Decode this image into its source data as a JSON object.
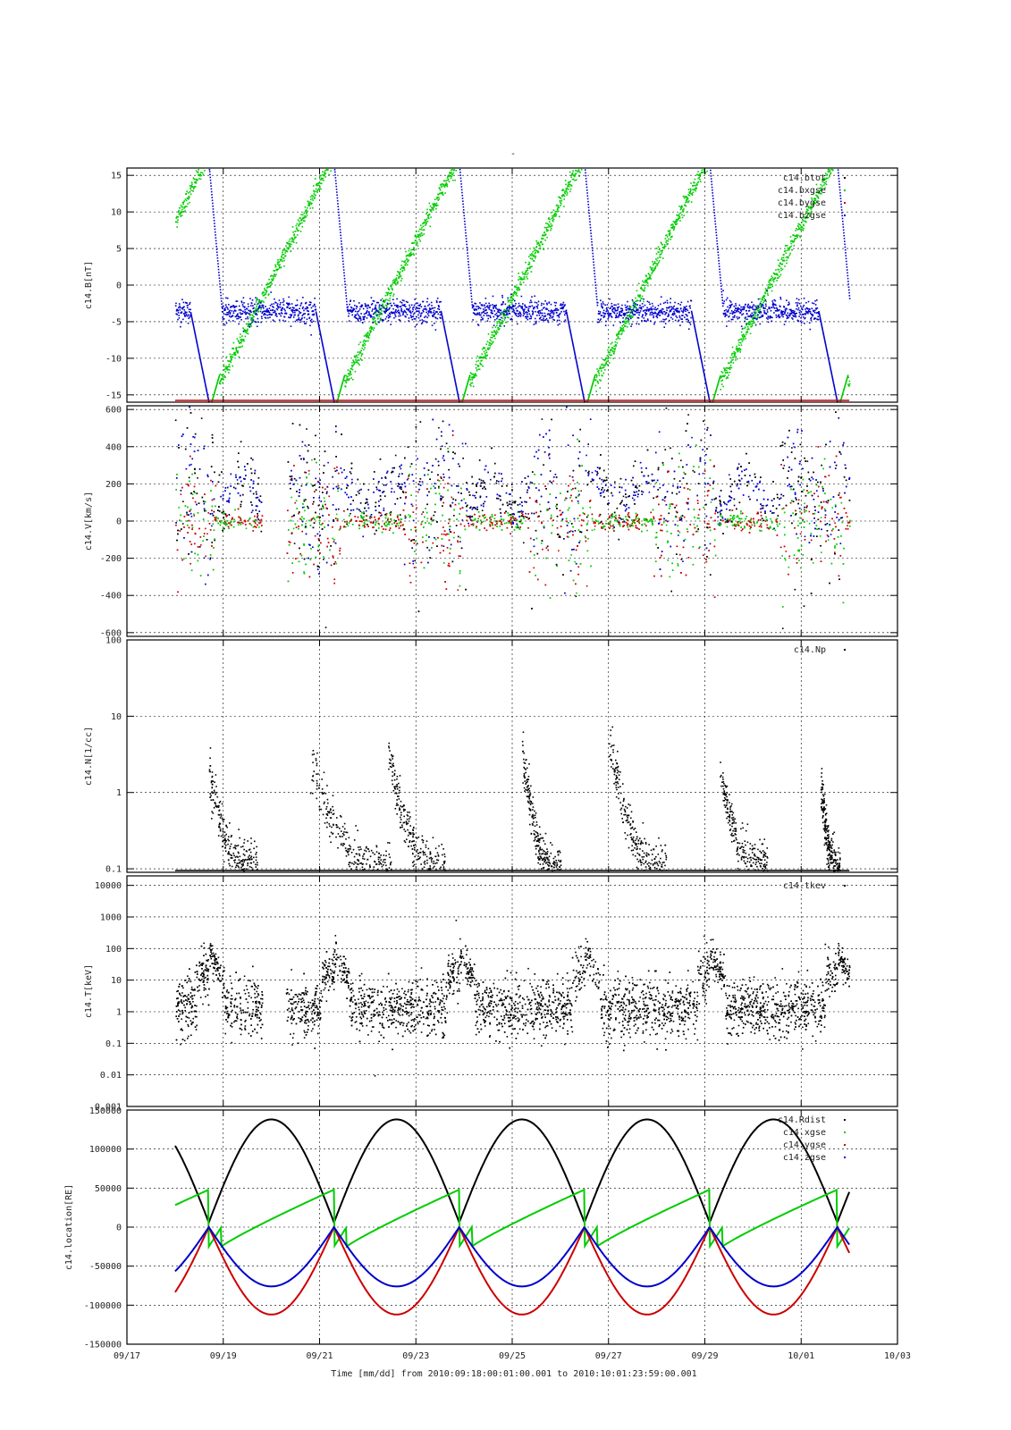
{
  "figure": {
    "top_mark": "-",
    "xlabel": "Time [mm/dd]  from 2010:09:18:00:01:00.001  to  2010:10:01:23:59:00.001"
  },
  "colors": {
    "black": "#000000",
    "red": "#cc0000",
    "green": "#00cc00",
    "blue": "#0000cc"
  },
  "chart_data": [
    {
      "type": "scatter",
      "ylabel": "c14.B[nT]",
      "yscale": "linear",
      "ylim": [
        -16,
        16
      ],
      "xlim": [
        "09/17",
        "10/03"
      ],
      "grid": true,
      "legend_position": "top-right",
      "yticks": [
        {
          "value": 15,
          "label": "15"
        },
        {
          "value": 10,
          "label": "10"
        },
        {
          "value": 5,
          "label": "5"
        },
        {
          "value": 0,
          "label": "0"
        },
        {
          "value": -5,
          "label": "-5"
        },
        {
          "value": -10,
          "label": "-10"
        },
        {
          "value": -15,
          "label": "-15"
        }
      ],
      "series": [
        {
          "name": "c14.btot",
          "color": "#000000"
        },
        {
          "name": "c14.bxgse",
          "color": "#00cc00"
        },
        {
          "name": "c14.bygse",
          "color": "#cc0000"
        },
        {
          "name": "c14.bzgse",
          "color": "#0000cc"
        }
      ]
    },
    {
      "type": "scatter",
      "ylabel": "c14.V[km/s]",
      "yscale": "linear",
      "ylim": [
        -620,
        620
      ],
      "grid": true,
      "legend_position": "top-right",
      "yticks": [
        {
          "value": 600,
          "label": "600"
        },
        {
          "value": 400,
          "label": "400"
        },
        {
          "value": 200,
          "label": "200"
        },
        {
          "value": 0,
          "label": "0"
        },
        {
          "value": -200,
          "label": "-200"
        },
        {
          "value": -400,
          "label": "-400"
        },
        {
          "value": -600,
          "label": "-600"
        }
      ],
      "series": [
        {
          "name": "",
          "color": "#000000"
        },
        {
          "name": "",
          "color": "#00cc00"
        },
        {
          "name": "",
          "color": "#cc0000"
        },
        {
          "name": "",
          "color": "#0000cc"
        }
      ]
    },
    {
      "type": "scatter",
      "ylabel": "c14.N[1/cc]",
      "yscale": "log",
      "ylim": [
        0.09,
        100
      ],
      "grid": true,
      "legend_position": "top-right",
      "yticks": [
        {
          "value": 100,
          "label": "100"
        },
        {
          "value": 10,
          "label": "10"
        },
        {
          "value": 1,
          "label": "1"
        },
        {
          "value": 0.1,
          "label": "0.1"
        }
      ],
      "series": [
        {
          "name": "c14.Np",
          "color": "#000000"
        }
      ],
      "bursts": [
        {
          "start": 1.7,
          "end": 2.7,
          "peak": 1.6
        },
        {
          "start": 3.8,
          "end": 5.5,
          "peak": 2.4
        },
        {
          "start": 5.4,
          "end": 6.6,
          "peak": 3.5
        },
        {
          "start": 8.2,
          "end": 9.0,
          "peak": 3.2
        },
        {
          "start": 10.0,
          "end": 11.2,
          "peak": 4.5
        },
        {
          "start": 12.3,
          "end": 13.3,
          "peak": 1.6
        },
        {
          "start": 14.4,
          "end": 14.8,
          "peak": 1.3
        }
      ]
    },
    {
      "type": "scatter",
      "ylabel": "c14.T[keV]",
      "yscale": "log",
      "ylim": [
        0.001,
        20000
      ],
      "grid": true,
      "legend_position": "top-right",
      "yticks": [
        {
          "value": 10000,
          "label": "10000"
        },
        {
          "value": 1000,
          "label": "1000"
        },
        {
          "value": 100,
          "label": "100"
        },
        {
          "value": 10,
          "label": "10"
        },
        {
          "value": 1,
          "label": "1"
        },
        {
          "value": 0.1,
          "label": "0.1"
        },
        {
          "value": 0.01,
          "label": "0.01"
        },
        {
          "value": 0.001,
          "label": "0.001"
        }
      ],
      "series": [
        {
          "name": "c14.tkev",
          "color": "#000000"
        }
      ]
    },
    {
      "type": "line",
      "ylabel": "c14.location[RE]",
      "yscale": "linear",
      "ylim": [
        -150000,
        150000
      ],
      "grid": true,
      "legend_position": "top-right",
      "top_tick_label": "150000",
      "yticks": [
        {
          "value": 100000,
          "label": "100000"
        },
        {
          "value": 50000,
          "label": "50000"
        },
        {
          "value": 0,
          "label": "0"
        },
        {
          "value": -50000,
          "label": "-50000"
        },
        {
          "value": -100000,
          "label": "-100000"
        },
        {
          "value": -150000,
          "label": "-150000"
        }
      ],
      "series": [
        {
          "name": "c14.Rdist",
          "color": "#000000"
        },
        {
          "name": "c14.xgse",
          "color": "#00cc00"
        },
        {
          "name": "c14.ygse",
          "color": "#cc0000"
        },
        {
          "name": "c14.zgse",
          "color": "#0000cc"
        }
      ],
      "orbit": {
        "period_days": 2.62,
        "perigee_days": [
          1.7,
          4.3,
          6.9,
          9.5,
          12.1,
          14.75
        ],
        "rdist_max": 138000,
        "rdist_perigee": 6000,
        "zgse_min": -76000,
        "ygse_min": -112000,
        "xgse_max": 48000
      }
    }
  ],
  "xaxis": {
    "ticks": [
      {
        "day": 0,
        "label": "09/17"
      },
      {
        "day": 2,
        "label": "09/19"
      },
      {
        "day": 4,
        "label": "09/21"
      },
      {
        "day": 6,
        "label": "09/23"
      },
      {
        "day": 8,
        "label": "09/25"
      },
      {
        "day": 10,
        "label": "09/27"
      },
      {
        "day": 12,
        "label": "09/29"
      },
      {
        "day": 14,
        "label": "10/01"
      },
      {
        "day": 16,
        "label": "10/03"
      }
    ],
    "data_range_days": [
      1.0,
      15.0
    ]
  }
}
